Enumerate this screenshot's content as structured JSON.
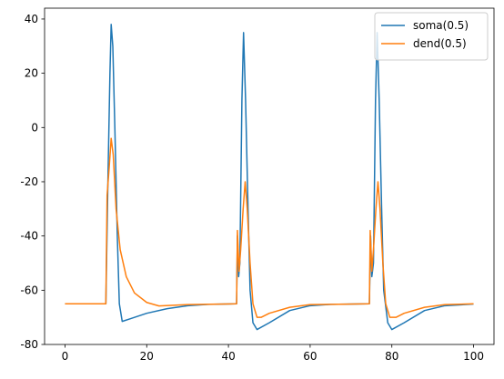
{
  "chart_data": {
    "type": "line",
    "xlim": [
      -5,
      105
    ],
    "ylim": [
      -80,
      44
    ],
    "xticks": [
      0,
      20,
      40,
      60,
      80,
      100
    ],
    "yticks": [
      -80,
      -60,
      -40,
      -20,
      0,
      20,
      40
    ],
    "legend": "upper right",
    "series": [
      {
        "name": "soma(0.5)",
        "color": "#1f77b4",
        "x": [
          0,
          10,
          10.5,
          11,
          11.3,
          11.7,
          12.2,
          12.8,
          13.3,
          14,
          16,
          20,
          25,
          30,
          35,
          42,
          42.2,
          42.5,
          42.8,
          43.3,
          43.7,
          44.2,
          44.8,
          45.3,
          46,
          47,
          50,
          55,
          60,
          65,
          74.5,
          74.8,
          75.1,
          75.5,
          76,
          76.4,
          76.9,
          77.5,
          78,
          79,
          80,
          83,
          88,
          93,
          100
        ],
        "values": [
          -65,
          -65,
          -20,
          20,
          38,
          30,
          0,
          -40,
          -65,
          -71.5,
          -70.5,
          -68.5,
          -66.8,
          -65.7,
          -65.2,
          -65,
          -40,
          -55,
          -50,
          10,
          35,
          10,
          -30,
          -60,
          -72,
          -74.5,
          -72,
          -67.5,
          -65.7,
          -65.2,
          -65,
          -40,
          -55,
          -50,
          10,
          35,
          10,
          -30,
          -60,
          -72,
          -74.5,
          -72,
          -67.5,
          -65.7,
          -65.1
        ]
      },
      {
        "name": "dend(0.5)",
        "color": "#ff7f0e",
        "x": [
          0,
          10,
          10.3,
          10.8,
          11.3,
          11.8,
          12.5,
          13.5,
          15,
          17,
          20,
          23,
          30,
          42,
          42.2,
          42.6,
          43,
          43.6,
          44.1,
          44.6,
          45.3,
          46,
          47,
          48,
          50,
          55,
          60,
          74.5,
          74.7,
          75.1,
          75.5,
          76.1,
          76.6,
          77.1,
          77.8,
          78.5,
          79.5,
          81,
          83,
          88,
          93,
          100
        ],
        "values": [
          -65,
          -65,
          -25,
          -15,
          -4,
          -10,
          -30,
          -45,
          -55,
          -61,
          -64.5,
          -65.8,
          -65.3,
          -65,
          -38,
          -53,
          -45,
          -30,
          -20,
          -30,
          -50,
          -65,
          -70,
          -70,
          -68.5,
          -66.3,
          -65.3,
          -65,
          -38,
          -53,
          -45,
          -30,
          -20,
          -30,
          -50,
          -65,
          -70,
          -70,
          -68.5,
          -66.3,
          -65.3,
          -65
        ]
      }
    ]
  }
}
